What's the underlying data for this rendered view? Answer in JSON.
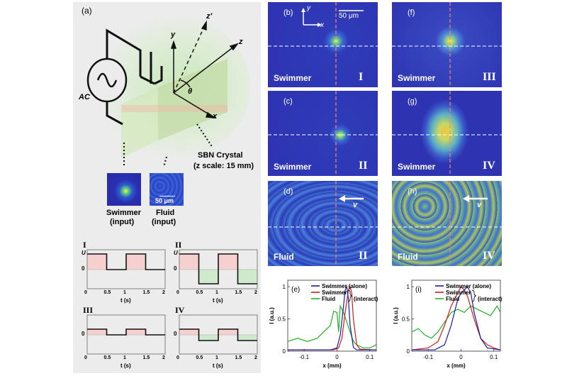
{
  "panel_a": {
    "label": "(a)",
    "ac_label": "AC",
    "axes": {
      "y": "y",
      "z_prime": "z′",
      "z": "z",
      "x": "x",
      "theta": "θ"
    },
    "crystal_line1": "SBN Crystal",
    "crystal_line2": "(z scale: 15 mm)",
    "scale_bar": "50 μm",
    "swimmer_input": [
      "Swimmer",
      "(input)"
    ],
    "fluid_input": [
      "Fluid",
      "(input)"
    ]
  },
  "waveforms": [
    {
      "label": "I",
      "U": "U",
      "zero": "0",
      "ticks": [
        "0",
        "0.5",
        "1",
        "1.5",
        "2"
      ],
      "xlabel": "t (s)"
    },
    {
      "label": "II",
      "U": "U",
      "zero": "0",
      "ticks": [
        "0",
        "0.5",
        "1",
        "1.5",
        "2"
      ],
      "xlabel": "t (s)"
    },
    {
      "label": "III",
      "U": "",
      "zero": "0",
      "ticks": [
        "0",
        "0.5",
        "1",
        "1.5",
        "2"
      ],
      "xlabel": "t (s)"
    },
    {
      "label": "IV",
      "U": "",
      "zero": "0",
      "ticks": [
        "0",
        "0.5",
        "1",
        "1.5",
        "2"
      ],
      "xlabel": "t (s)"
    }
  ],
  "images": {
    "b": {
      "tag": "(b)",
      "name": "Swimmer",
      "roman": "I",
      "scale": "50 μm",
      "ax_y": "y",
      "ax_x": "x"
    },
    "c": {
      "tag": "(c)",
      "name": "Swimmer",
      "roman": "II"
    },
    "d": {
      "tag": "(d)",
      "name": "Fluid",
      "roman": "II",
      "v": "v"
    },
    "f": {
      "tag": "(f)",
      "name": "Swimmer",
      "roman": "III"
    },
    "g": {
      "tag": "(g)",
      "name": "Swimmer",
      "roman": "IV"
    },
    "h": {
      "tag": "(h)",
      "name": "Fluid",
      "roman": "IV",
      "v": "v"
    }
  },
  "chart_data": [
    {
      "type": "line",
      "panel": "(e)",
      "xlabel": "x (mm)",
      "ylabel": "I (a.u.)",
      "xlim": [
        -0.15,
        0.12
      ],
      "ylim": [
        0,
        1.1
      ],
      "xticks": [
        "-0.1",
        "0",
        "0.1"
      ],
      "yticks": [
        "0",
        "0.5",
        "1"
      ],
      "legend": [
        "Swimmer (alone)",
        "Swimmer",
        "Fluid"
      ],
      "legend_note": "(interact)",
      "series": [
        {
          "name": "Swimmer (alone)",
          "color": "#1a1aa8",
          "x": [
            -0.15,
            -0.02,
            0.0,
            0.01,
            0.02,
            0.025,
            0.03,
            0.035,
            0.04,
            0.05,
            0.06,
            0.12
          ],
          "y": [
            0.02,
            0.02,
            0.05,
            0.25,
            0.7,
            0.95,
            1.0,
            0.8,
            0.4,
            0.06,
            0.02,
            0.02
          ]
        },
        {
          "name": "Swimmer",
          "color": "#d41a1a",
          "x": [
            -0.15,
            -0.01,
            0.005,
            0.015,
            0.025,
            0.035,
            0.04,
            0.045,
            0.05,
            0.06,
            0.07,
            0.12
          ],
          "y": [
            0.02,
            0.02,
            0.05,
            0.2,
            0.6,
            0.95,
            1.0,
            0.9,
            0.5,
            0.1,
            0.03,
            0.02
          ]
        },
        {
          "name": "Fluid",
          "color": "#22b222",
          "x": [
            -0.15,
            -0.12,
            -0.09,
            -0.06,
            -0.04,
            -0.02,
            -0.01,
            0.0,
            0.005,
            0.01,
            0.02,
            0.03,
            0.04,
            0.05,
            0.06,
            0.08,
            0.1,
            0.12
          ],
          "y": [
            0.15,
            0.2,
            0.15,
            0.2,
            0.3,
            0.4,
            0.62,
            0.6,
            0.3,
            0.7,
            0.6,
            0.45,
            0.3,
            0.15,
            0.1,
            0.05,
            0.05,
            0.1
          ]
        }
      ]
    },
    {
      "type": "line",
      "panel": "(i)",
      "xlabel": "x (mm)",
      "ylabel": "I (a.u.)",
      "xlim": [
        -0.15,
        0.12
      ],
      "ylim": [
        0,
        1.1
      ],
      "xticks": [
        "-0.1",
        "0",
        "0.1"
      ],
      "yticks": [
        "0",
        "0.5",
        "1"
      ],
      "legend": [
        "Swimmer (alone)",
        "Swimmer",
        "Fluid"
      ],
      "legend_note": "(interact)",
      "series": [
        {
          "name": "Swimmer (alone)",
          "color": "#1a1aa8",
          "x": [
            -0.15,
            -0.08,
            -0.05,
            -0.03,
            -0.01,
            0.0,
            0.01,
            0.02,
            0.03,
            0.04,
            0.06,
            0.08,
            0.12
          ],
          "y": [
            0.02,
            0.02,
            0.1,
            0.4,
            0.8,
            0.9,
            0.95,
            1.0,
            0.9,
            0.6,
            0.2,
            0.05,
            0.02
          ]
        },
        {
          "name": "Swimmer",
          "color": "#d41a1a",
          "x": [
            -0.15,
            -0.1,
            -0.07,
            -0.05,
            -0.03,
            -0.01,
            0.0,
            0.01,
            0.02,
            0.04,
            0.06,
            0.08,
            0.1,
            0.12
          ],
          "y": [
            0.02,
            0.05,
            0.15,
            0.4,
            0.7,
            0.9,
            1.0,
            0.95,
            0.85,
            0.5,
            0.2,
            0.1,
            0.05,
            0.02
          ]
        },
        {
          "name": "Fluid",
          "color": "#22b222",
          "x": [
            -0.15,
            -0.13,
            -0.11,
            -0.09,
            -0.07,
            -0.05,
            -0.03,
            -0.01,
            0.01,
            0.03,
            0.05,
            0.07,
            0.09,
            0.11,
            0.12
          ],
          "y": [
            0.3,
            0.35,
            0.25,
            0.2,
            0.3,
            0.45,
            0.6,
            0.65,
            0.6,
            0.7,
            0.65,
            0.6,
            0.55,
            0.7,
            0.6
          ]
        }
      ]
    }
  ]
}
